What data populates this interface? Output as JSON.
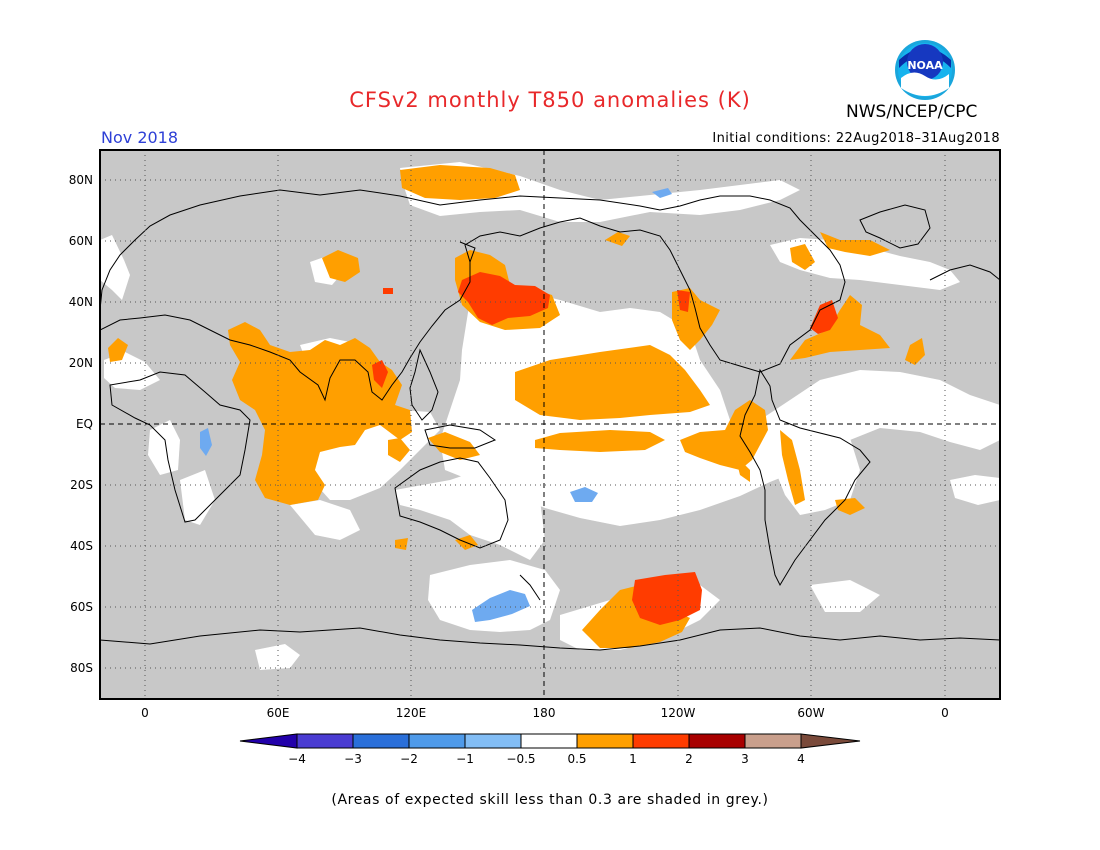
{
  "header": {
    "title": "CFSv2 monthly T850 anomalies (K)",
    "agency": "NWS/NCEP/CPC",
    "logo_text": "NOAA",
    "period": "Nov 2018",
    "initial_conditions": "Initial conditions: 22Aug2018–31Aug2018"
  },
  "map": {
    "latitude_labels": [
      "80N",
      "60N",
      "40N",
      "20N",
      "EQ",
      "20S",
      "40S",
      "60S",
      "80S"
    ],
    "longitude_labels": [
      "0",
      "60E",
      "120E",
      "180",
      "120W",
      "60W",
      "0"
    ],
    "colors": {
      "skill_grey": "#c8c8c8",
      "land_outline": "#000000",
      "anomaly_0_5_to_1": "#ff9f00",
      "anomaly_1_to_2": "#ff3c00",
      "anomaly_2_to_3": "#d2291f",
      "anomaly_neg_0_5_to_neg_1": "#6eaaf0",
      "anomaly_neg_1_to_neg_2": "#3c8ce6"
    }
  },
  "legend": {
    "tick_labels": [
      "−4",
      "−3",
      "−2",
      "−1",
      "−0.5",
      "0.5",
      "1",
      "2",
      "3",
      "4"
    ],
    "colors": [
      "#2200aa",
      "#4a3cd2",
      "#2a6fd9",
      "#4f9ae9",
      "#82bdf5",
      "#ffffff",
      "#ff9f00",
      "#ff3c00",
      "#a80000",
      "#c99f8c",
      "#7a4a3a"
    ]
  },
  "footnote": "(Areas of expected skill less than 0.3 are shaded in grey.)"
}
